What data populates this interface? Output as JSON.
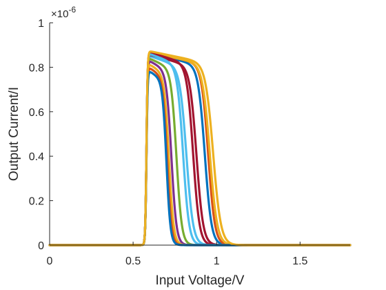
{
  "chart_data": {
    "type": "line",
    "xlabel": "Input Voltage/V",
    "ylabel": "Output Current/I",
    "y_multiplier_label": "×10",
    "y_multiplier_exponent": "-6",
    "xlim": [
      0,
      1.8
    ],
    "ylim": [
      0,
      1
    ],
    "x_ticks": [
      0,
      0.5,
      1,
      1.5
    ],
    "x_tick_labels": [
      "0",
      "0.5",
      "1",
      "1.5"
    ],
    "y_ticks": [
      0,
      0.2,
      0.4,
      0.6,
      0.8,
      1
    ],
    "y_tick_labels": [
      "0",
      "0.2",
      "0.4",
      "0.6",
      "0.8",
      "1"
    ],
    "grid": false,
    "legend": "none",
    "series": [
      {
        "color": "#4DBEEE",
        "onset": 0.58,
        "peak": 0.855,
        "cutoff": 0.82,
        "steep": 0.02
      },
      {
        "color": "#A2142F",
        "onset": 0.58,
        "peak": 0.86,
        "cutoff": 0.88,
        "steep": 0.02
      },
      {
        "color": "#0072BD",
        "onset": 0.58,
        "peak": 0.865,
        "cutoff": 0.93,
        "steep": 0.02
      },
      {
        "color": "#D95319",
        "onset": 0.58,
        "peak": 0.87,
        "cutoff": 0.95,
        "steep": 0.02
      },
      {
        "color": "#EDB120",
        "onset": 0.58,
        "peak": 0.87,
        "cutoff": 0.96,
        "steep": 0.022
      },
      {
        "color": "#A2142F",
        "onset": 0.58,
        "peak": 0.87,
        "cutoff": 0.86,
        "steep": 0.019
      },
      {
        "color": "#4DBEEE",
        "onset": 0.58,
        "peak": 0.865,
        "cutoff": 0.8,
        "steep": 0.018
      },
      {
        "color": "#77AC30",
        "onset": 0.58,
        "peak": 0.845,
        "cutoff": 0.76,
        "steep": 0.016
      },
      {
        "color": "#7E2F8E",
        "onset": 0.58,
        "peak": 0.835,
        "cutoff": 0.73,
        "steep": 0.015
      },
      {
        "color": "#EDB120",
        "onset": 0.58,
        "peak": 0.82,
        "cutoff": 0.715,
        "steep": 0.014
      },
      {
        "color": "#D95319",
        "onset": 0.58,
        "peak": 0.805,
        "cutoff": 0.705,
        "steep": 0.013
      },
      {
        "color": "#0072BD",
        "onset": 0.58,
        "peak": 0.79,
        "cutoff": 0.7,
        "steep": 0.012
      },
      {
        "color": "#EDB120",
        "onset": 0.58,
        "peak": 0.875,
        "cutoff": 0.98,
        "steep": 0.023
      }
    ]
  }
}
